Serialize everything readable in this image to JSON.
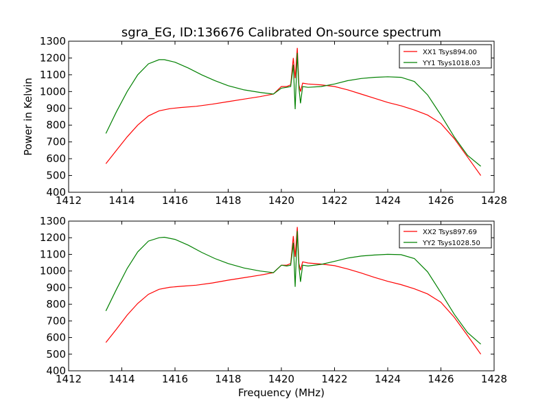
{
  "chart_data": [
    {
      "type": "line",
      "title": "sgra_EG, ID:136676 Calibrated On-source spectrum",
      "xlabel": "",
      "ylabel": "Power in Kelvin",
      "xlim": [
        1412,
        1428
      ],
      "ylim": [
        400,
        1300
      ],
      "xticks": [
        1412,
        1414,
        1416,
        1418,
        1420,
        1422,
        1424,
        1426,
        1428
      ],
      "yticks": [
        400,
        500,
        600,
        700,
        800,
        900,
        1000,
        1100,
        1200,
        1300
      ],
      "grid": false,
      "legend": "top-right",
      "series": [
        {
          "name": "XX1 Tsys894.00",
          "color": "#ff0000",
          "x": [
            1413.4,
            1413.8,
            1414.2,
            1414.6,
            1415.0,
            1415.4,
            1415.8,
            1416.2,
            1416.8,
            1417.4,
            1418.0,
            1418.6,
            1419.2,
            1419.7,
            1420.0,
            1420.2,
            1420.35,
            1420.45,
            1420.52,
            1420.6,
            1420.66,
            1420.72,
            1420.8,
            1421.0,
            1421.5,
            1422.0,
            1422.5,
            1423.0,
            1423.5,
            1424.0,
            1424.5,
            1425.0,
            1425.5,
            1426.0,
            1426.5,
            1427.0,
            1427.5
          ],
          "y": [
            570,
            650,
            730,
            800,
            855,
            885,
            898,
            905,
            912,
            925,
            940,
            955,
            970,
            985,
            1030,
            1030,
            1040,
            1200,
            1080,
            1260,
            1040,
            1000,
            1050,
            1045,
            1040,
            1030,
            1010,
            985,
            960,
            935,
            915,
            890,
            860,
            810,
            720,
            610,
            500
          ]
        },
        {
          "name": "YY1 Tsys1018.03",
          "color": "#008000",
          "x": [
            1413.4,
            1413.8,
            1414.2,
            1414.6,
            1415.0,
            1415.4,
            1415.6,
            1416.0,
            1416.5,
            1417.0,
            1417.5,
            1418.0,
            1418.6,
            1419.2,
            1419.7,
            1420.0,
            1420.2,
            1420.35,
            1420.45,
            1420.52,
            1420.6,
            1420.66,
            1420.72,
            1420.8,
            1421.0,
            1421.5,
            1422.0,
            1422.5,
            1423.0,
            1423.5,
            1424.0,
            1424.5,
            1425.0,
            1425.5,
            1426.0,
            1426.5,
            1427.0,
            1427.5
          ],
          "y": [
            750,
            880,
            1000,
            1100,
            1165,
            1190,
            1190,
            1175,
            1140,
            1100,
            1065,
            1035,
            1010,
            995,
            985,
            1020,
            1025,
            1030,
            1160,
            895,
            1230,
            1020,
            930,
            1030,
            1025,
            1030,
            1045,
            1065,
            1078,
            1085,
            1088,
            1085,
            1060,
            980,
            860,
            730,
            620,
            555
          ]
        }
      ]
    },
    {
      "type": "line",
      "title": "",
      "xlabel": "Frequency (MHz)",
      "ylabel": "",
      "xlim": [
        1412,
        1428
      ],
      "ylim": [
        400,
        1300
      ],
      "xticks": [
        1412,
        1414,
        1416,
        1418,
        1420,
        1422,
        1424,
        1426,
        1428
      ],
      "yticks": [
        400,
        500,
        600,
        700,
        800,
        900,
        1000,
        1100,
        1200,
        1300
      ],
      "grid": false,
      "legend": "top-right",
      "series": [
        {
          "name": "XX2 Tsys897.69",
          "color": "#ff0000",
          "x": [
            1413.4,
            1413.8,
            1414.2,
            1414.6,
            1415.0,
            1415.4,
            1415.8,
            1416.2,
            1416.8,
            1417.4,
            1418.0,
            1418.6,
            1419.2,
            1419.7,
            1420.0,
            1420.2,
            1420.35,
            1420.45,
            1420.52,
            1420.6,
            1420.66,
            1420.72,
            1420.8,
            1421.0,
            1421.5,
            1422.0,
            1422.5,
            1423.0,
            1423.5,
            1424.0,
            1424.5,
            1425.0,
            1425.5,
            1426.0,
            1426.5,
            1427.0,
            1427.5
          ],
          "y": [
            570,
            650,
            735,
            805,
            860,
            890,
            902,
            908,
            915,
            928,
            945,
            960,
            975,
            990,
            1035,
            1035,
            1045,
            1210,
            1085,
            1265,
            1045,
            1005,
            1055,
            1048,
            1042,
            1032,
            1012,
            988,
            962,
            938,
            918,
            893,
            862,
            812,
            722,
            612,
            500
          ]
        },
        {
          "name": "YY2 Tsys1028.50",
          "color": "#008000",
          "x": [
            1413.4,
            1413.8,
            1414.2,
            1414.6,
            1415.0,
            1415.4,
            1415.6,
            1416.0,
            1416.5,
            1417.0,
            1417.5,
            1418.0,
            1418.6,
            1419.2,
            1419.7,
            1420.0,
            1420.2,
            1420.35,
            1420.45,
            1420.52,
            1420.6,
            1420.66,
            1420.72,
            1420.8,
            1421.0,
            1421.5,
            1422.0,
            1422.5,
            1423.0,
            1423.5,
            1424.0,
            1424.5,
            1425.0,
            1425.5,
            1426.0,
            1426.5,
            1427.0,
            1427.5
          ],
          "y": [
            760,
            890,
            1015,
            1115,
            1180,
            1200,
            1203,
            1190,
            1155,
            1112,
            1075,
            1045,
            1018,
            1000,
            990,
            1035,
            1030,
            1035,
            1170,
            905,
            1240,
            1025,
            935,
            1035,
            1030,
            1040,
            1058,
            1078,
            1090,
            1096,
            1100,
            1098,
            1075,
            995,
            870,
            740,
            630,
            560
          ]
        }
      ]
    }
  ]
}
